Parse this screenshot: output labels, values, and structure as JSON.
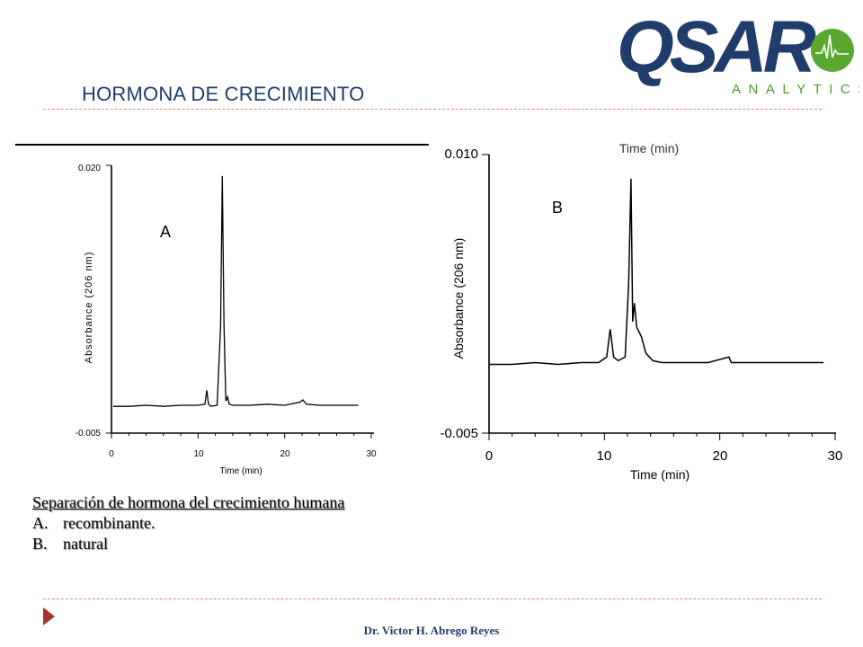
{
  "slide": {
    "title": "HORMONA DE CRECIMIENTO",
    "footer": "Dr. Victor H. Abrego Reyes"
  },
  "logo": {
    "word": "QSAR",
    "tagline": "ANALYTICS",
    "colors": {
      "word": "#1f3d6b",
      "tagline": "#4c9a2a",
      "circle": "#5aa832"
    }
  },
  "caption": {
    "line1": "Separación de hormona del crecimiento humana",
    "items": [
      {
        "marker": "A.",
        "text": "recombinante."
      },
      {
        "marker": "B.",
        "text": "natural"
      }
    ]
  },
  "chart_data": [
    {
      "type": "line",
      "panel_label": "A",
      "xlabel": "Time (min)",
      "ylabel": "Absorbance (206 nm)",
      "xlim": [
        0,
        30
      ],
      "ylim": [
        -0.005,
        0.02
      ],
      "x_ticks": [
        "0",
        "10",
        "20",
        "30"
      ],
      "y_ticks": [
        "0.020",
        "-0.005"
      ],
      "grid": false,
      "series": [
        {
          "x": [
            0.2,
            2,
            4,
            6,
            8,
            10,
            10.8,
            11.0,
            11.2,
            11.5,
            12.2,
            12.6,
            12.8,
            13.0,
            13.2,
            13.4,
            13.6,
            14,
            16,
            18,
            20,
            21.8,
            22.1,
            22.5,
            24,
            26,
            28.5
          ],
          "y": [
            -0.0025,
            -0.0025,
            -0.0024,
            -0.0025,
            -0.0024,
            -0.0024,
            -0.0023,
            -0.001,
            -0.0023,
            -0.0025,
            -0.0024,
            0.005,
            0.019,
            0.005,
            -0.002,
            -0.0016,
            -0.0023,
            -0.0024,
            -0.0024,
            -0.0023,
            -0.0024,
            -0.0021,
            -0.0019,
            -0.0023,
            -0.0024,
            -0.0024,
            -0.0024
          ]
        }
      ]
    },
    {
      "type": "line",
      "panel_label": "B",
      "xlabel": "Time (min)",
      "ylabel": "Absorbance (206 nm)",
      "title_fragment": "Time (min)",
      "xlim": [
        0,
        30
      ],
      "ylim": [
        -0.005,
        0.01
      ],
      "x_ticks": [
        "0",
        "10",
        "20",
        "30"
      ],
      "y_ticks": [
        "0.010",
        "-0.005"
      ],
      "grid": false,
      "series": [
        {
          "x": [
            0,
            2,
            4,
            6,
            8,
            9.5,
            10.2,
            10.5,
            10.8,
            11.2,
            11.8,
            12.1,
            12.3,
            12.45,
            12.6,
            12.8,
            13.2,
            13.6,
            14.2,
            15,
            17,
            19,
            20.8,
            21,
            23,
            25,
            27,
            29
          ],
          "y": [
            -0.0013,
            -0.0013,
            -0.0012,
            -0.0013,
            -0.0012,
            -0.0012,
            -0.0009,
            0.0006,
            -0.0009,
            -0.0011,
            -0.0009,
            0.003,
            0.0087,
            0.001,
            0.002,
            0.0007,
            0.0002,
            -0.0007,
            -0.0011,
            -0.0012,
            -0.0012,
            -0.0012,
            -0.0009,
            -0.0012,
            -0.0012,
            -0.0012,
            -0.0012,
            -0.0012
          ]
        }
      ]
    }
  ]
}
